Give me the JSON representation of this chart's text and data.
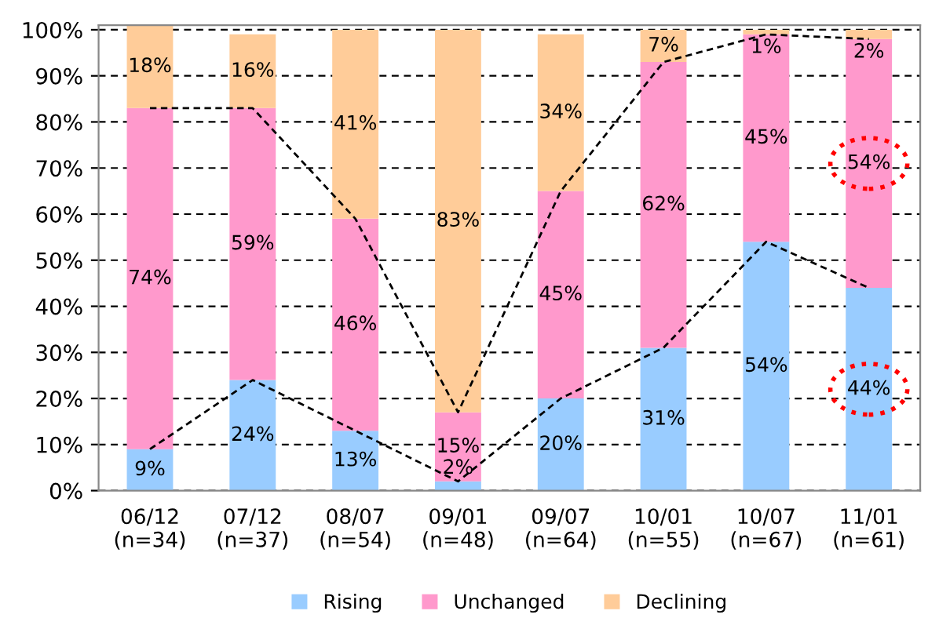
{
  "chart_data": {
    "type": "bar",
    "stacked": true,
    "categories": [
      "06/12\n(n=34)",
      "07/12\n(n=37)",
      "08/07\n(n=54)",
      "09/01\n(n=48)",
      "09/07\n(n=64)",
      "10/01\n(n=55)",
      "10/07\n(n=67)",
      "11/01\n(n=61)"
    ],
    "series": [
      {
        "name": "Rising",
        "color": "#99ccff",
        "values": [
          9,
          24,
          13,
          2,
          20,
          31,
          54,
          44
        ],
        "value_labels": [
          "9%",
          "24%",
          "13%",
          "2%",
          "20%",
          "31%",
          "54%",
          "44%"
        ]
      },
      {
        "name": "Unchanged",
        "color": "#ff99cc",
        "values": [
          74,
          59,
          46,
          15,
          45,
          62,
          45,
          54
        ],
        "value_labels": [
          "74%",
          "59%",
          "46%",
          "15%",
          "45%",
          "62%",
          "45%",
          "54%"
        ]
      },
      {
        "name": "Declining",
        "color": "#ffcc99",
        "values": [
          18,
          16,
          41,
          83,
          34,
          7,
          1,
          2
        ],
        "value_labels": [
          "18%",
          "16%",
          "41%",
          "83%",
          "34%",
          "7%",
          "1%",
          "2%"
        ]
      },
      {
        "type": "line",
        "color": "#000000",
        "line_style": "dashed",
        "marker": "none",
        "values": [
          83,
          83,
          59,
          17,
          65,
          93,
          99,
          98
        ]
      },
      {
        "type": "line",
        "color": "#000000",
        "line_style": "dashed",
        "marker": "none",
        "values": [
          9,
          24,
          13,
          2,
          20,
          31,
          54,
          44
        ]
      }
    ],
    "ylim": [
      0,
      101
    ],
    "yticks": [
      {
        "value": 0,
        "label": "0%"
      },
      {
        "value": 10,
        "label": "10%"
      },
      {
        "value": 20,
        "label": "20%"
      },
      {
        "value": 30,
        "label": "30%"
      },
      {
        "value": 40,
        "label": "40%"
      },
      {
        "value": 50,
        "label": "50%"
      },
      {
        "value": 60,
        "label": "60%"
      },
      {
        "value": 70,
        "label": "70%"
      },
      {
        "value": 80,
        "label": "80%"
      },
      {
        "value": 90,
        "label": "90%"
      },
      {
        "value": 100,
        "label": "100%"
      }
    ],
    "grid": "y",
    "legend": "bottom"
  }
}
